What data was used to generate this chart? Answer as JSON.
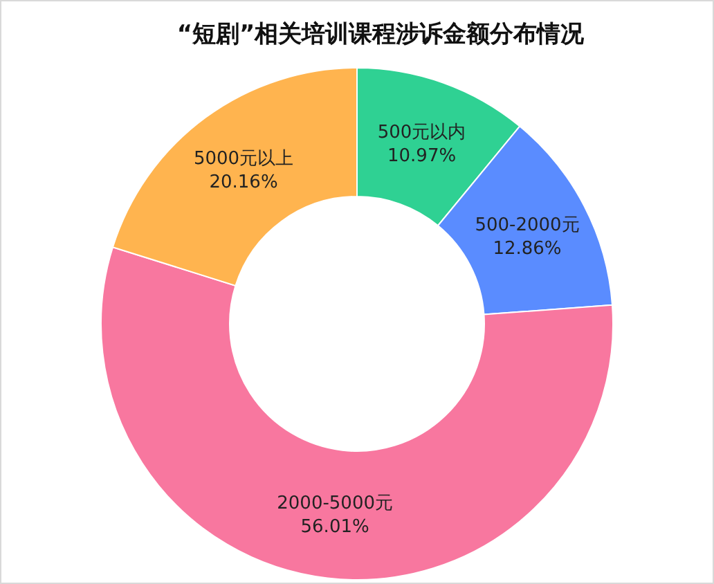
{
  "chart_data": {
    "type": "donut",
    "title": "“短剧”相关培训课程涉诉金额分布情况",
    "categories": [
      "500元以内",
      "500-2000元",
      "2000-5000元",
      "5000元以上"
    ],
    "values": [
      10.97,
      12.86,
      56.01,
      20.16
    ],
    "value_labels": [
      "10.97%",
      "12.86%",
      "56.01%",
      "20.16%"
    ],
    "colors": [
      "#2fd193",
      "#5a8cff",
      "#f8779f",
      "#ffb44f"
    ]
  }
}
